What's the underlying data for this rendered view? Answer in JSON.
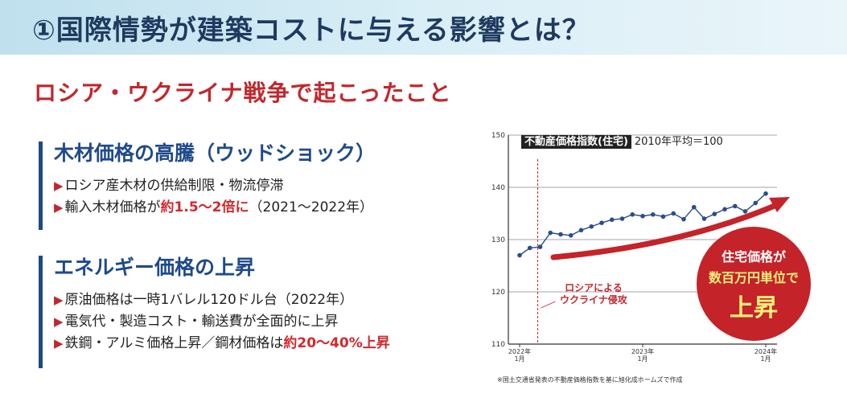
{
  "header": {
    "title": "①国際情勢が建築コストに与える影響とは？"
  },
  "section": {
    "title": "ロシア・ウクライナ戦争で起こったこと"
  },
  "blocks": [
    {
      "heading": "木材価格の高騰（ウッドショック）",
      "bullets": [
        {
          "mark": "▶",
          "pre": "ロシア産木材の供給制限・物流停滞",
          "hl": "",
          "post": ""
        },
        {
          "mark": "▶",
          "pre": "輸入木材価格が",
          "hl": "約1.5〜2倍に",
          "post": "（2021〜2022年）"
        }
      ]
    },
    {
      "heading": "エネルギー価格の上昇",
      "bullets": [
        {
          "mark": "▶",
          "pre": "原油価格は一時1バレル120ドル台（2022年）",
          "hl": "",
          "post": ""
        },
        {
          "mark": "▶",
          "pre": "電気代・製造コスト・輸送費が全面的に上昇",
          "hl": "",
          "post": ""
        },
        {
          "mark": "▶",
          "pre": "鉄鋼・アルミ価格上昇／鋼材価格は",
          "hl": "約20〜40%上昇",
          "post": ""
        }
      ]
    }
  ],
  "chart_data": {
    "type": "line",
    "title": "不動産価格指数(住宅)",
    "subtitle": "2010年平均＝100",
    "ylim": [
      110,
      150
    ],
    "yticks": [
      110,
      120,
      130,
      140,
      150
    ],
    "xticks": [
      {
        "index": 0,
        "line1": "2022年",
        "line2": "1月"
      },
      {
        "index": 12,
        "line1": "2023年",
        "line2": "1月"
      },
      {
        "index": 24,
        "line1": "2024年",
        "line2": "1月"
      }
    ],
    "grid": true,
    "values": [
      127.0,
      128.4,
      128.6,
      131.3,
      131.0,
      130.8,
      131.8,
      132.5,
      133.2,
      133.8,
      134.0,
      134.8,
      134.5,
      134.8,
      134.4,
      135.0,
      133.9,
      136.2,
      134.0,
      134.9,
      135.8,
      136.4,
      135.4,
      137.0,
      138.8
    ],
    "event": {
      "index": 2,
      "label_line1": "ロシアによる",
      "label_line2": "ウクライナ侵攻"
    },
    "callout": {
      "line1": "住宅価格が",
      "line2": "数百万円単位で",
      "line3": "上昇"
    },
    "note": "※国土交通省発表の不動産価格指数を基に旭化成ホームズで作成"
  },
  "colors": {
    "series": "#2b4c8c",
    "accent": "#c4232a"
  }
}
